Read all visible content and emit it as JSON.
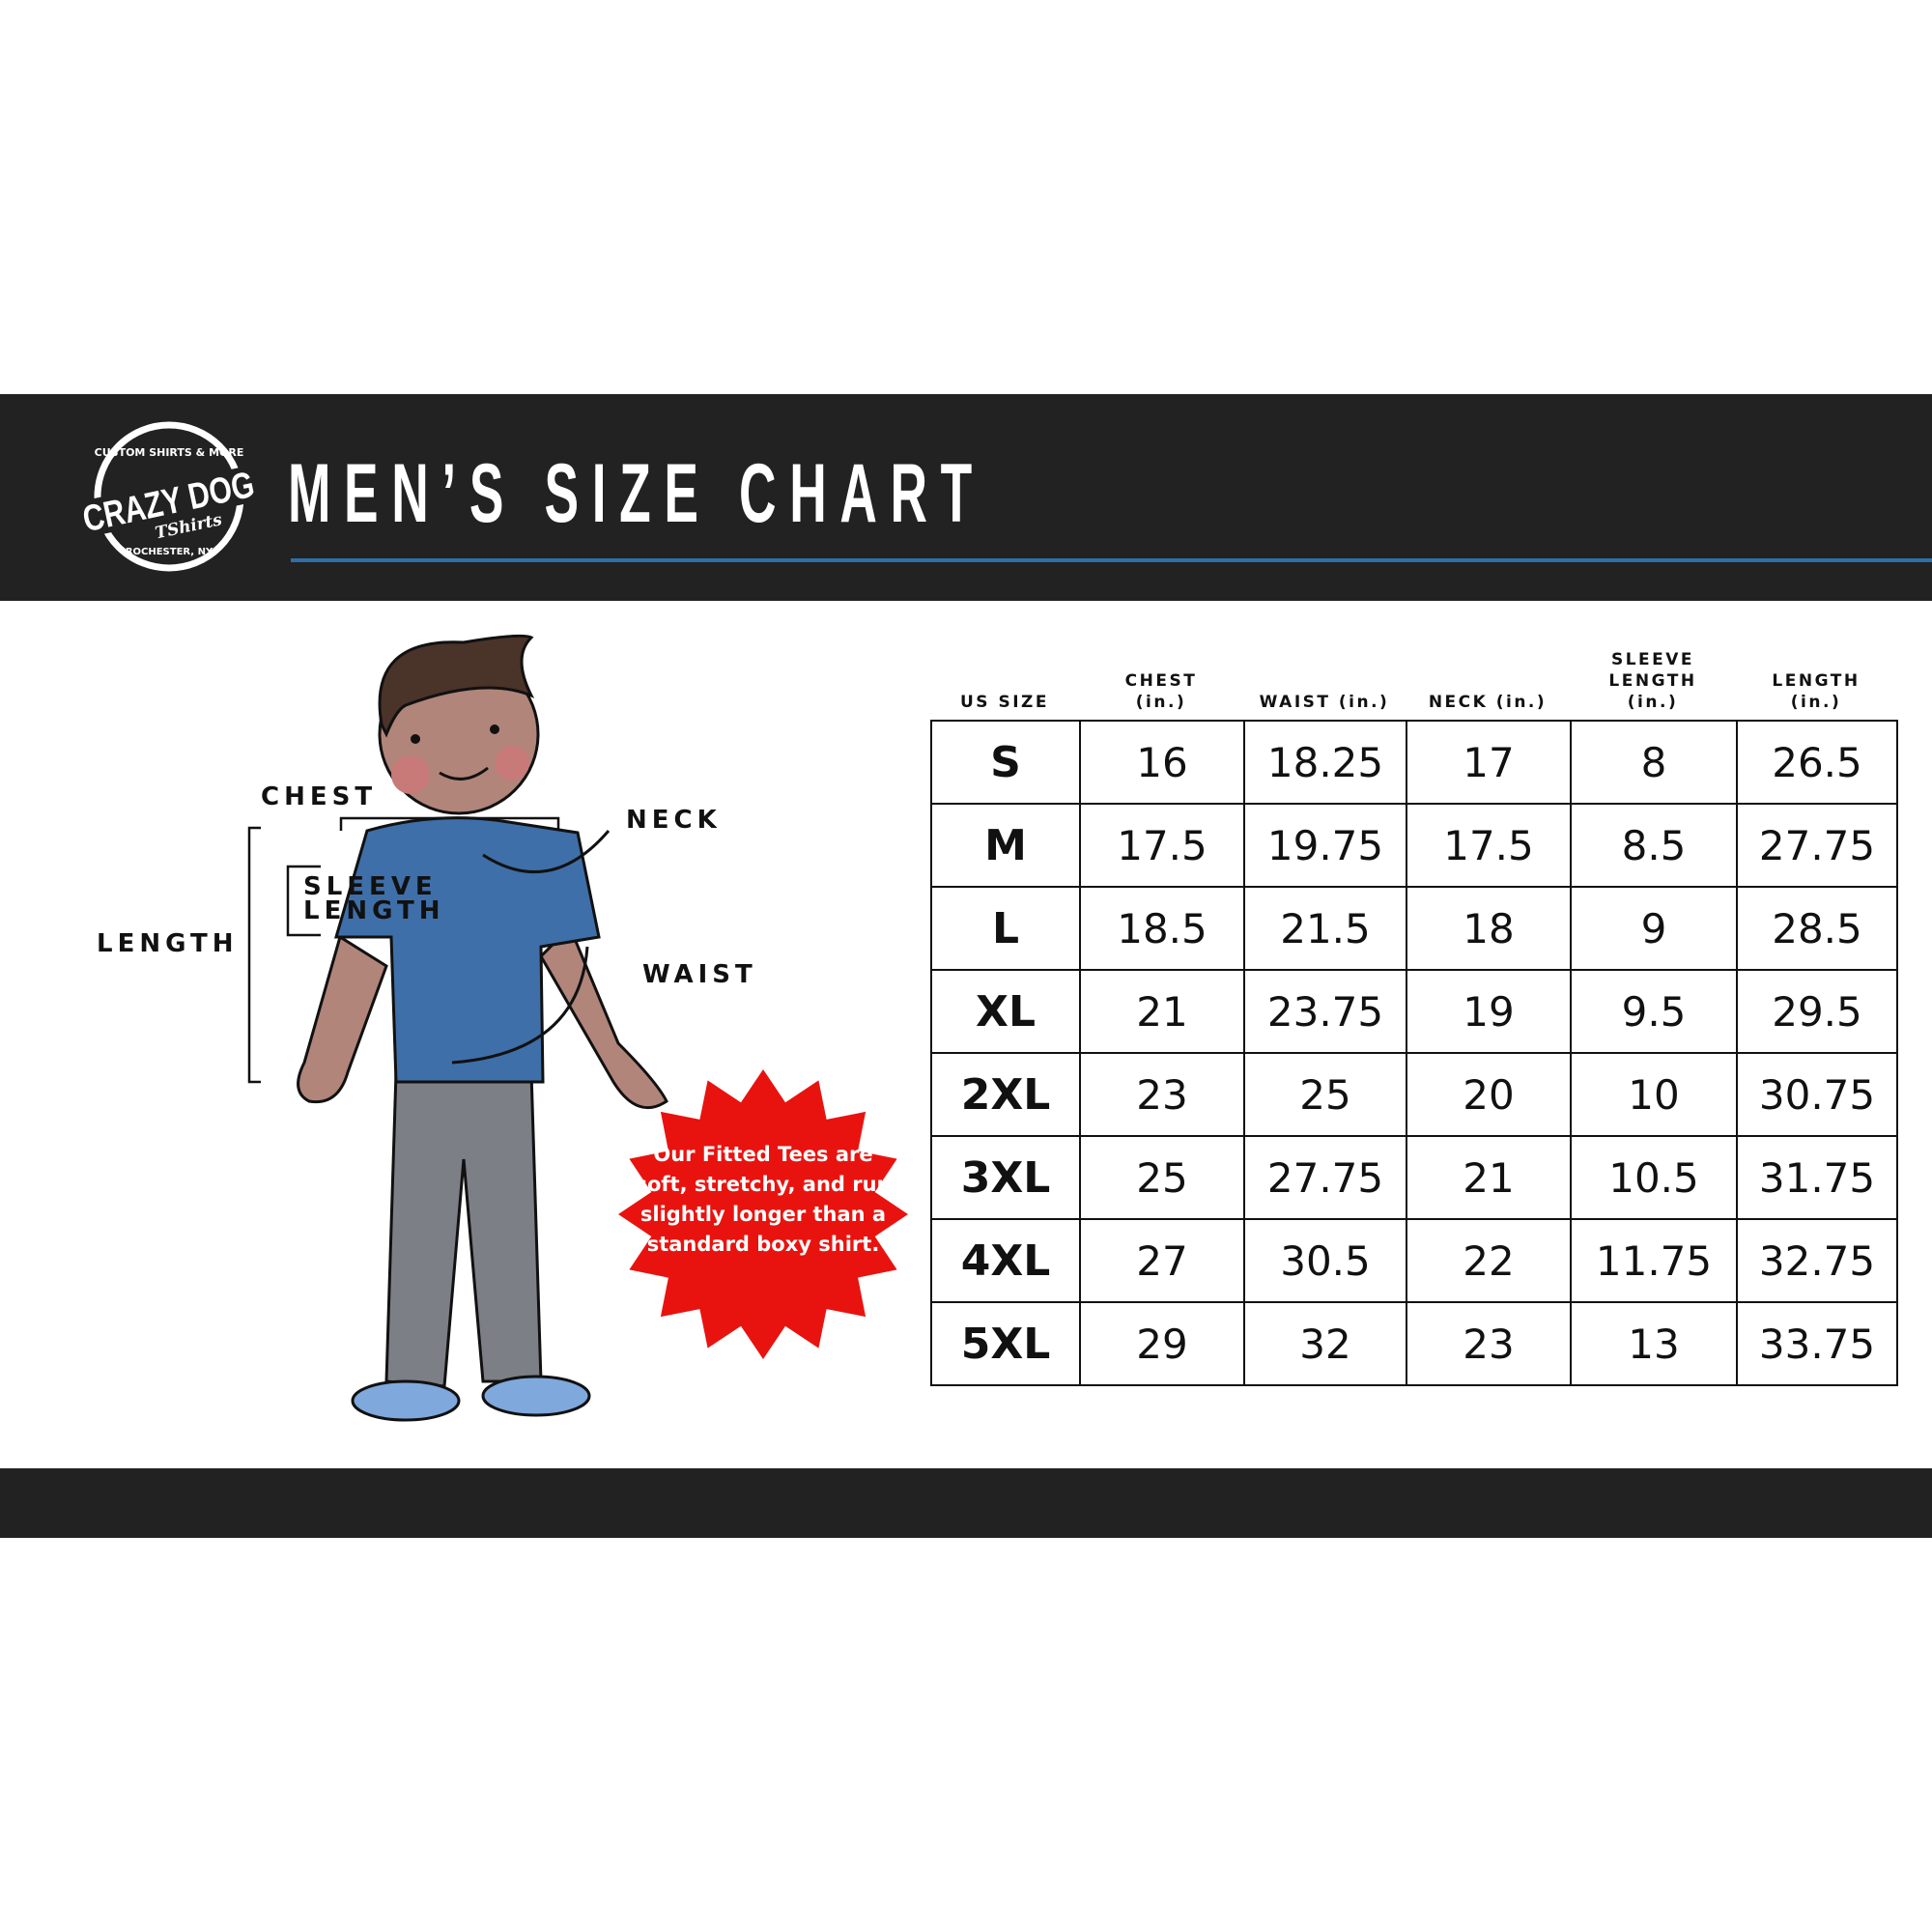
{
  "brand": {
    "logo_text": "CRAZY DOG TShirts",
    "logo_top": "CUSTOM SHIRTS & MORE",
    "logo_bottom": "ROCHESTER, NY"
  },
  "title": "MEN’S SIZE CHART",
  "colors": {
    "band": "#222222",
    "accent_rule": "#2f6fa6",
    "burst": "#e8130f",
    "shirt": "#3e6fa8"
  },
  "diagram": {
    "labels": {
      "chest": "CHEST",
      "neck": "NECK",
      "sleeve_length": "SLEEVE\nLENGTH",
      "length": "LENGTH",
      "waist": "WAIST"
    },
    "callout": "Our Fitted Tees are soft, stretchy, and run slightly longer than a standard boxy shirt."
  },
  "table": {
    "columns": [
      "US SIZE",
      "CHEST\n(in.)",
      "WAIST (in.)",
      "NECK (in.)",
      "SLEEVE\nLENGTH\n(in.)",
      "LENGTH\n(in.)"
    ],
    "rows": [
      [
        "S",
        "16",
        "18.25",
        "17",
        "8",
        "26.5"
      ],
      [
        "M",
        "17.5",
        "19.75",
        "17.5",
        "8.5",
        "27.75"
      ],
      [
        "L",
        "18.5",
        "21.5",
        "18",
        "9",
        "28.5"
      ],
      [
        "XL",
        "21",
        "23.75",
        "19",
        "9.5",
        "29.5"
      ],
      [
        "2XL",
        "23",
        "25",
        "20",
        "10",
        "30.75"
      ],
      [
        "3XL",
        "25",
        "27.75",
        "21",
        "10.5",
        "31.75"
      ],
      [
        "4XL",
        "27",
        "30.5",
        "22",
        "11.75",
        "32.75"
      ],
      [
        "5XL",
        "29",
        "32",
        "23",
        "13",
        "33.75"
      ]
    ]
  }
}
